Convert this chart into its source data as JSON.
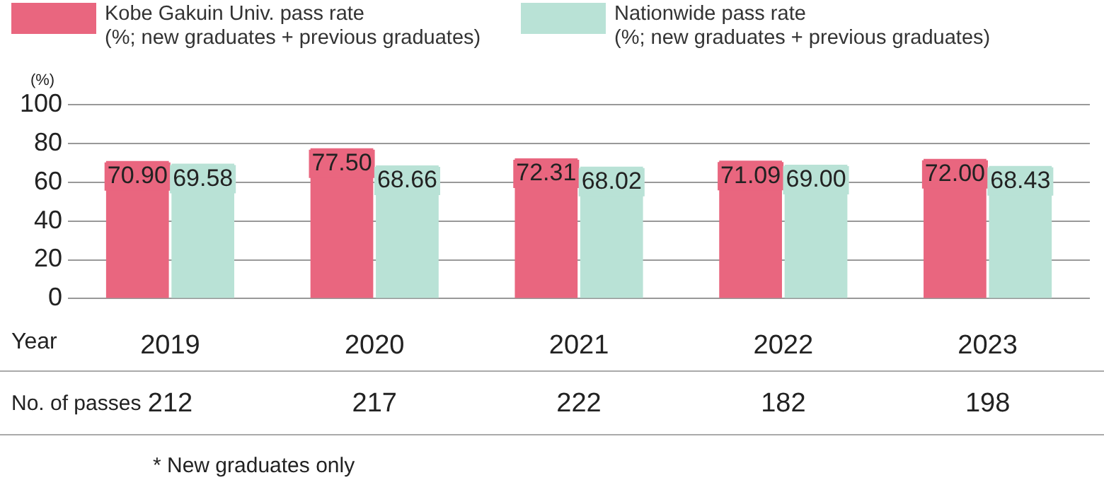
{
  "chart_data": {
    "type": "bar",
    "ylabel": "(%)",
    "xlabel": "Year",
    "categories": [
      "2019",
      "2020",
      "2021",
      "2022",
      "2023"
    ],
    "series": [
      {
        "name": "Kobe Gakuin Univ. pass rate\n(%; new graduates + previous graduates)",
        "color": "#e9667f",
        "values": [
          70.9,
          77.5,
          72.31,
          71.09,
          72.0
        ],
        "value_labels": [
          "70.90",
          "77.50",
          "72.31",
          "71.09",
          "72.00"
        ]
      },
      {
        "name": "Nationwide pass rate\n(%; new graduates + previous graduates)",
        "color": "#b9e2d6",
        "values": [
          69.58,
          68.66,
          68.02,
          69.0,
          68.43
        ],
        "value_labels": [
          "69.58",
          "68.66",
          "68.02",
          "69.00",
          "68.43"
        ]
      }
    ],
    "ylim": [
      0,
      100
    ],
    "yticks": [
      0,
      20,
      40,
      60,
      80,
      100
    ],
    "grid": "y",
    "legend": "top left",
    "annotations": [
      "No. of passes",
      "212",
      "217",
      "222",
      "182",
      "198",
      "* New graduates only"
    ]
  }
}
